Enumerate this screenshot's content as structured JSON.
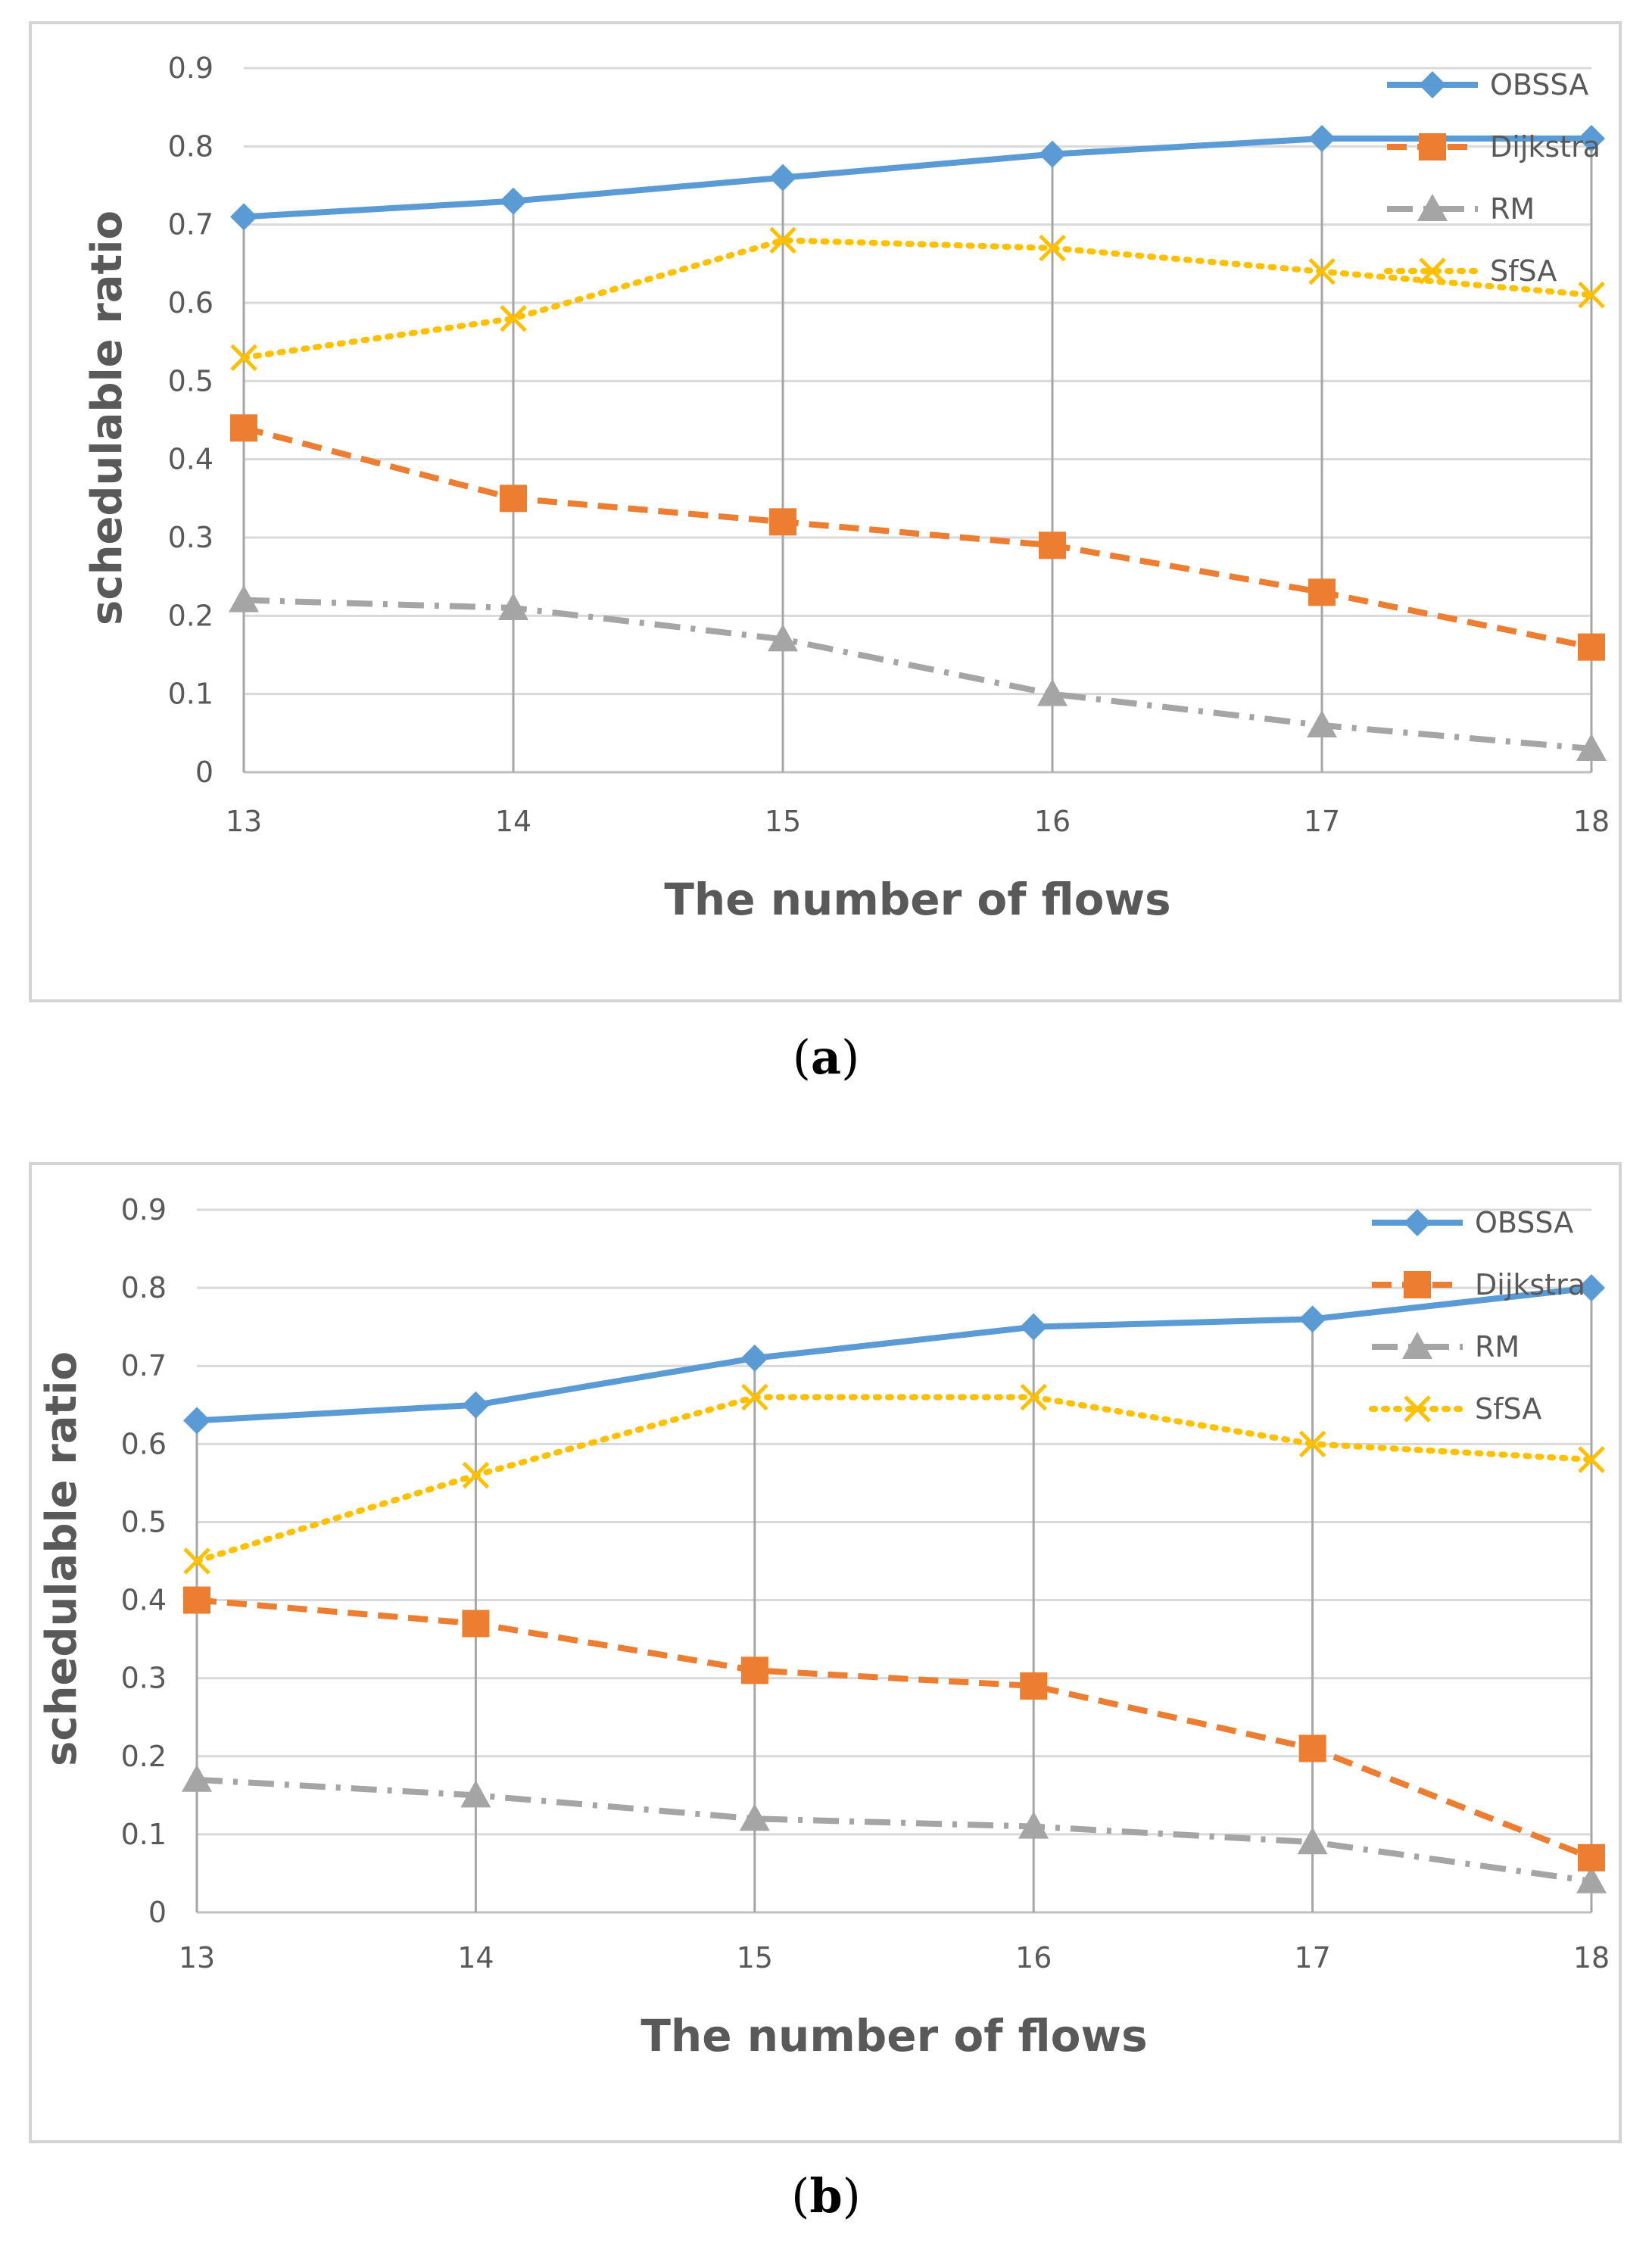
{
  "chart_data": [
    {
      "id": "a",
      "type": "line",
      "caption_letter": "a",
      "xlabel": "The number of flows",
      "ylabel": "schedulable ratio",
      "categories": [
        "13",
        "14",
        "15",
        "16",
        "17",
        "18"
      ],
      "ylim": [
        0,
        0.9
      ],
      "yticks": [
        "0",
        "0.1",
        "0.2",
        "0.3",
        "0.4",
        "0.5",
        "0.6",
        "0.7",
        "0.8",
        "0.9"
      ],
      "grid": true,
      "legend_position": "top-right",
      "series": [
        {
          "name": "OBSSA",
          "values": [
            0.71,
            0.73,
            0.76,
            0.79,
            0.81,
            0.81
          ],
          "color": "#5B9BD5",
          "dash": "solid",
          "marker": "diamond"
        },
        {
          "name": "Dijkstra",
          "values": [
            0.44,
            0.35,
            0.32,
            0.29,
            0.23,
            0.16
          ],
          "color": "#ED7D31",
          "dash": "dash",
          "marker": "square"
        },
        {
          "name": "RM",
          "values": [
            0.22,
            0.21,
            0.17,
            0.1,
            0.06,
            0.03
          ],
          "color": "#A5A5A5",
          "dash": "dashdot",
          "marker": "triangle"
        },
        {
          "name": "SfSA",
          "values": [
            0.53,
            0.58,
            0.68,
            0.67,
            0.64,
            0.61
          ],
          "color": "#FFC000",
          "dash": "dot",
          "marker": "x"
        }
      ]
    },
    {
      "id": "b",
      "type": "line",
      "caption_letter": "b",
      "xlabel": "The number of flows",
      "ylabel": "schedulable ratio",
      "categories": [
        "13",
        "14",
        "15",
        "16",
        "17",
        "18"
      ],
      "ylim": [
        0,
        0.9
      ],
      "yticks": [
        "0",
        "0.1",
        "0.2",
        "0.3",
        "0.4",
        "0.5",
        "0.6",
        "0.7",
        "0.8",
        "0.9"
      ],
      "grid": true,
      "legend_position": "top-right",
      "series": [
        {
          "name": "OBSSA",
          "values": [
            0.63,
            0.65,
            0.71,
            0.75,
            0.76,
            0.8
          ],
          "color": "#5B9BD5",
          "dash": "solid",
          "marker": "diamond"
        },
        {
          "name": "Dijkstra",
          "values": [
            0.4,
            0.37,
            0.31,
            0.29,
            0.21,
            0.07
          ],
          "color": "#ED7D31",
          "dash": "dash",
          "marker": "square"
        },
        {
          "name": "RM",
          "values": [
            0.17,
            0.15,
            0.12,
            0.11,
            0.09,
            0.04
          ],
          "color": "#A5A5A5",
          "dash": "dashdot",
          "marker": "triangle"
        },
        {
          "name": "SfSA",
          "values": [
            0.45,
            0.56,
            0.66,
            0.66,
            0.6,
            0.58
          ],
          "color": "#FFC000",
          "dash": "dot",
          "marker": "x"
        }
      ]
    }
  ]
}
